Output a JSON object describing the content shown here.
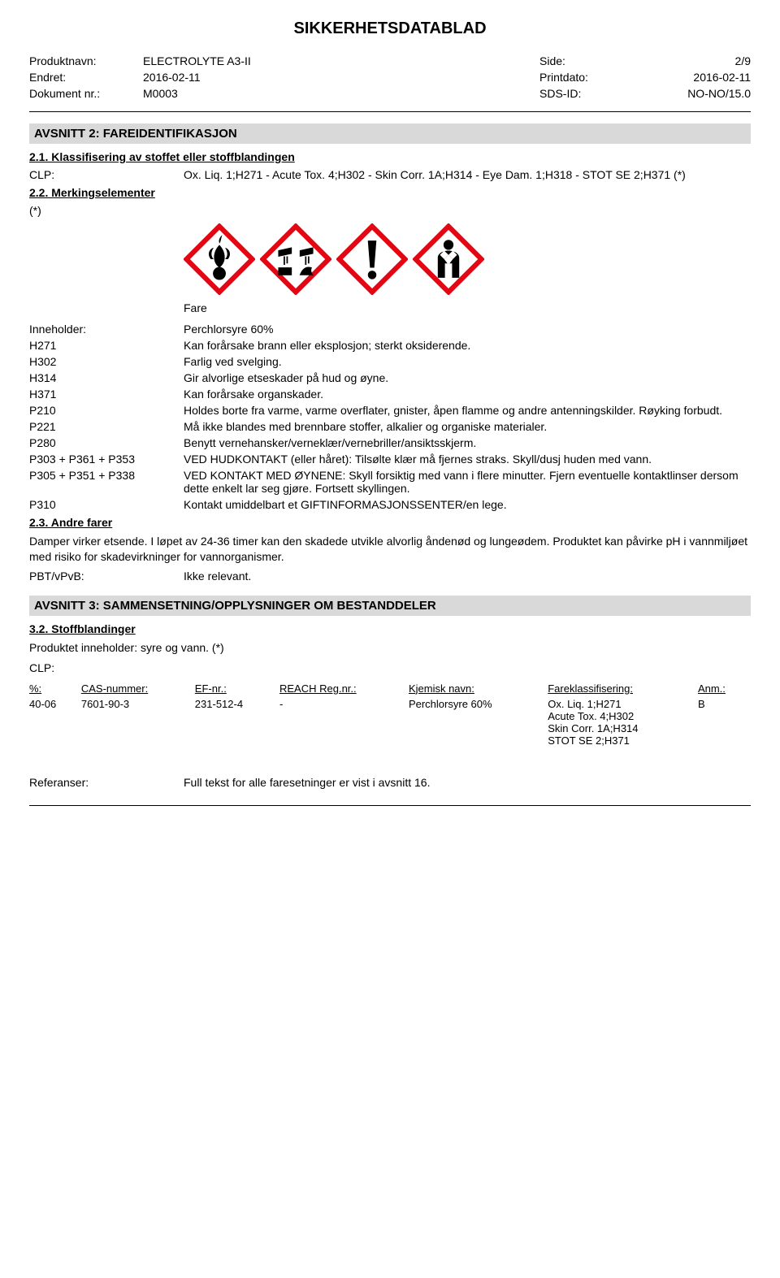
{
  "doc_title": "SIKKERHETSDATABLAD",
  "header": {
    "product_label": "Produktnavn:",
    "product_value": "ELECTROLYTE A3-II",
    "side_label": "Side:",
    "side_value": "2/9",
    "changed_label": "Endret:",
    "changed_value": "2016-02-11",
    "printdate_label": "Printdato:",
    "printdate_value": "2016-02-11",
    "docnr_label": "Dokument nr.:",
    "docnr_value": "M0003",
    "sdsid_label": "SDS-ID:",
    "sdsid_value": "NO-NO/15.0"
  },
  "section2": {
    "title": "AVSNITT 2: FAREIDENTIFIKASJON",
    "s21_title": "2.1. Klassifisering av stoffet eller stoffblandingen",
    "clp_label": "CLP:",
    "clp_value": "Ox. Liq. 1;H271 - Acute Tox. 4;H302 - Skin Corr. 1A;H314 - Eye Dam. 1;H318 - STOT SE 2;H371 (*)",
    "s22_title": "2.2. Merkingselementer",
    "asterisk": "(*)",
    "signal_word": "Fare",
    "contains_label": "Inneholder:",
    "contains_value": "Perchlorsyre 60%",
    "hazards": [
      {
        "code": "H271",
        "text": "Kan forårsake brann eller eksplosjon; sterkt oksiderende."
      },
      {
        "code": "H302",
        "text": "Farlig ved svelging."
      },
      {
        "code": "H314",
        "text": "Gir alvorlige etseskader på hud og øyne."
      },
      {
        "code": "H371",
        "text": "Kan forårsake organskader."
      },
      {
        "code": "P210",
        "text": "Holdes borte fra varme, varme overflater, gnister, åpen flamme og andre antenningskilder. Røyking forbudt."
      },
      {
        "code": "P221",
        "text": "Må ikke blandes med brennbare stoffer, alkalier og organiske materialer."
      },
      {
        "code": "P280",
        "text": "Benytt vernehansker/verneklær/vernebriller/ansiktsskjerm."
      },
      {
        "code": "P303 + P361 + P353",
        "text": "VED HUDKONTAKT (eller håret): Tilsølte klær må fjernes straks. Skyll/dusj huden med vann."
      },
      {
        "code": "P305 + P351 + P338",
        "text": "VED KONTAKT MED ØYNENE: Skyll forsiktig med vann i flere minutter. Fjern eventuelle kontaktlinser dersom dette enkelt lar seg gjøre. Fortsett skyllingen."
      },
      {
        "code": "P310",
        "text": "Kontakt umiddelbart et GIFTINFORMASJONSSENTER/en lege."
      }
    ],
    "s23_title": "2.3. Andre farer",
    "other_hazards_text": "Damper virker etsende. I løpet av 24-36 timer kan den skadede utvikle alvorlig åndenød og lungeødem. Produktet kan påvirke pH i vannmiljøet med risiko for skadevirkninger for vannorganismer.",
    "pbt_label": "PBT/vPvB:",
    "pbt_value": "Ikke relevant."
  },
  "section3": {
    "title": "AVSNITT 3: SAMMENSETNING/OPPLYSNINGER OM BESTANDDELER",
    "s32_title": "3.2. Stoffblandinger",
    "intro": "Produktet inneholder: syre og vann. (*)",
    "clp_label": "CLP:",
    "cols": {
      "pct": "%:",
      "cas": "CAS-nummer:",
      "ef": "EF-nr.:",
      "reach": "REACH Reg.nr.:",
      "name": "Kjemisk navn:",
      "class": "Fareklassifisering:",
      "note": "Anm.:"
    },
    "row": {
      "pct": "40-06",
      "cas": "7601-90-3",
      "ef": "231-512-4",
      "reach": "-",
      "name": "Perchlorsyre 60%",
      "class": "Ox. Liq. 1;H271\nAcute Tox. 4;H302\nSkin Corr. 1A;H314\nSTOT SE 2;H371",
      "note": "B"
    },
    "ref_label": "Referanser:",
    "ref_value": "Full tekst for alle faresetninger er vist i avsnitt 16."
  },
  "pictogram_style": {
    "size": 88,
    "border_color": "#e30613",
    "border_width": 6,
    "fill": "#ffffff",
    "symbol_color": "#000000"
  }
}
